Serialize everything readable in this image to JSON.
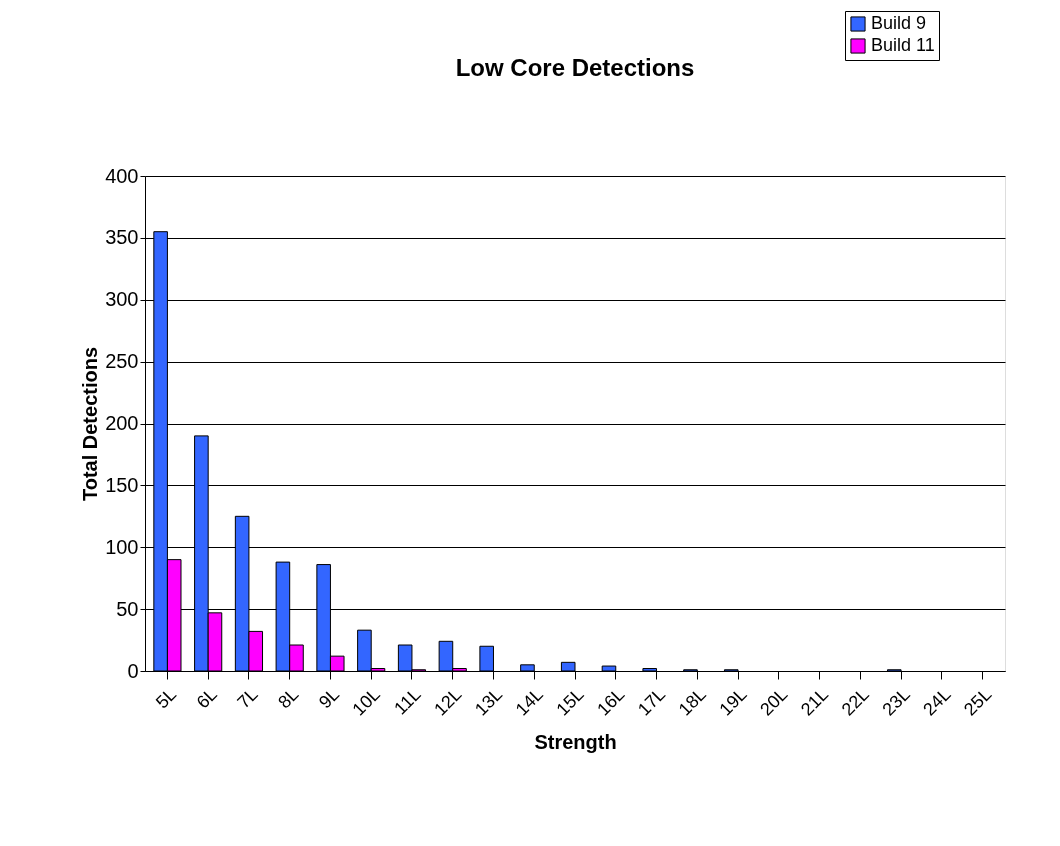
{
  "chart_data": {
    "type": "bar",
    "title": "Low Core Detections",
    "xlabel": "Strength",
    "ylabel": "Total Detections",
    "categories": [
      "5L",
      "6L",
      "7L",
      "8L",
      "9L",
      "10L",
      "11L",
      "12L",
      "13L",
      "14L",
      "15L",
      "16L",
      "17L",
      "18L",
      "19L",
      "20L",
      "21L",
      "22L",
      "23L",
      "24L",
      "25L"
    ],
    "series": [
      {
        "name": "Build 9",
        "color": "#3366ff",
        "values": [
          355,
          190,
          125,
          88,
          86,
          33,
          21,
          24,
          20,
          5,
          7,
          4,
          2,
          1,
          1,
          0,
          0,
          0,
          1,
          0,
          0
        ]
      },
      {
        "name": "Build 11",
        "color": "#ff00ff",
        "values": [
          90,
          47,
          32,
          21,
          12,
          2,
          1,
          2,
          0,
          0,
          0,
          0,
          0,
          0,
          0,
          0,
          0,
          0,
          0,
          0,
          0
        ]
      }
    ],
    "ylim": [
      0,
      400
    ],
    "yticks": [
      0,
      50,
      100,
      150,
      200,
      250,
      300,
      350,
      400
    ],
    "grid": "y",
    "legend": "top right"
  }
}
